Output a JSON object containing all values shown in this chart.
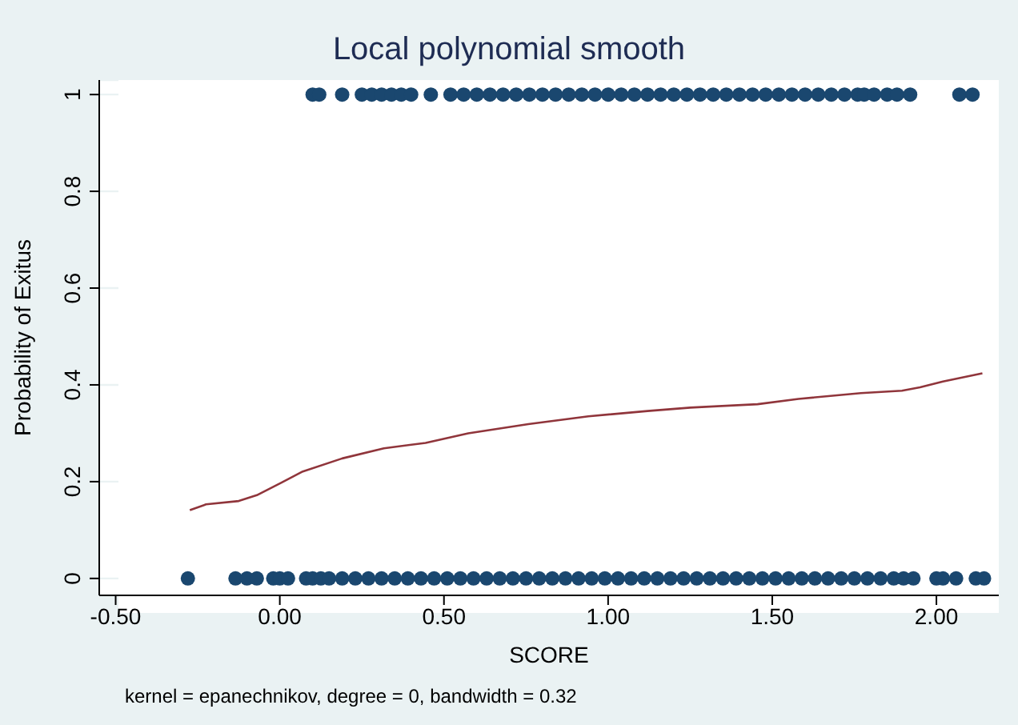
{
  "chart_data": {
    "type": "scatter",
    "title": "Local polynomial smooth",
    "xlabel": "SCORE",
    "ylabel": "Probability of Exitus",
    "annotations": [
      "kernel = epanechnikov, degree = 0, bandwidth = 0.32"
    ],
    "xlim": [
      -0.55,
      2.19
    ],
    "ylim": [
      -0.035,
      1.03
    ],
    "xticks": [
      {
        "value": -0.5,
        "label": "-0.50"
      },
      {
        "value": 0,
        "label": "0.00"
      },
      {
        "value": 0.5,
        "label": "0.50"
      },
      {
        "value": 1,
        "label": "1.00"
      },
      {
        "value": 1.5,
        "label": "1.50"
      },
      {
        "value": 2,
        "label": "2.00"
      }
    ],
    "yticks": [
      0,
      0.2,
      0.4,
      0.6,
      0.8,
      1
    ],
    "grid": "y",
    "legend": false,
    "marker": "circle",
    "series": [
      {
        "color": "#1a476f",
        "x": [
          0.1,
          0.12,
          0.19,
          0.25,
          0.28,
          0.31,
          0.34,
          0.37,
          0.4,
          0.46,
          0.52,
          0.56,
          0.6,
          0.64,
          0.68,
          0.72,
          0.76,
          0.8,
          0.84,
          0.88,
          0.92,
          0.96,
          1.0,
          1.04,
          1.08,
          1.12,
          1.16,
          1.2,
          1.24,
          1.28,
          1.32,
          1.36,
          1.4,
          1.44,
          1.48,
          1.52,
          1.56,
          1.6,
          1.64,
          1.68,
          1.72,
          1.76,
          1.78,
          1.81,
          1.85,
          1.88,
          1.92,
          2.07,
          2.11
        ],
        "values": [
          1,
          1,
          1,
          1,
          1,
          1,
          1,
          1,
          1,
          1,
          1,
          1,
          1,
          1,
          1,
          1,
          1,
          1,
          1,
          1,
          1,
          1,
          1,
          1,
          1,
          1,
          1,
          1,
          1,
          1,
          1,
          1,
          1,
          1,
          1,
          1,
          1,
          1,
          1,
          1,
          1,
          1,
          1,
          1,
          1,
          1,
          1,
          1,
          1
        ]
      },
      {
        "color": "#1a476f",
        "x": [
          -0.28,
          -0.135,
          -0.1,
          -0.07,
          -0.02,
          0.0,
          0.025,
          0.08,
          0.1,
          0.125,
          0.15,
          0.19,
          0.23,
          0.27,
          0.31,
          0.35,
          0.39,
          0.43,
          0.47,
          0.51,
          0.55,
          0.59,
          0.63,
          0.67,
          0.71,
          0.75,
          0.79,
          0.83,
          0.87,
          0.91,
          0.95,
          0.99,
          1.03,
          1.07,
          1.11,
          1.15,
          1.19,
          1.23,
          1.27,
          1.31,
          1.35,
          1.39,
          1.43,
          1.47,
          1.51,
          1.55,
          1.59,
          1.63,
          1.67,
          1.71,
          1.75,
          1.79,
          1.83,
          1.87,
          1.9,
          1.93,
          2.0,
          2.02,
          2.06,
          2.12,
          2.145
        ],
        "values": [
          0,
          0,
          0,
          0,
          0,
          0,
          0,
          0,
          0,
          0,
          0,
          0,
          0,
          0,
          0,
          0,
          0,
          0,
          0,
          0,
          0,
          0,
          0,
          0,
          0,
          0,
          0,
          0,
          0,
          0,
          0,
          0,
          0,
          0,
          0,
          0,
          0,
          0,
          0,
          0,
          0,
          0,
          0,
          0,
          0,
          0,
          0,
          0,
          0,
          0,
          0,
          0,
          0,
          0,
          0,
          0,
          0,
          0,
          0,
          0,
          0
        ]
      },
      {
        "type": "line",
        "color": "#90353b",
        "marker": "none",
        "x": [
          -0.274,
          -0.225,
          -0.125,
          -0.07,
          0.005,
          0.07,
          0.19,
          0.317,
          0.444,
          0.574,
          0.757,
          0.94,
          1.12,
          1.25,
          1.455,
          1.58,
          1.77,
          1.895,
          1.95,
          2.02,
          2.14
        ],
        "values": [
          0.141,
          0.153,
          0.16,
          0.172,
          0.198,
          0.221,
          0.248,
          0.269,
          0.28,
          0.3,
          0.319,
          0.335,
          0.346,
          0.353,
          0.36,
          0.371,
          0.383,
          0.388,
          0.395,
          0.407,
          0.424
        ]
      }
    ]
  }
}
